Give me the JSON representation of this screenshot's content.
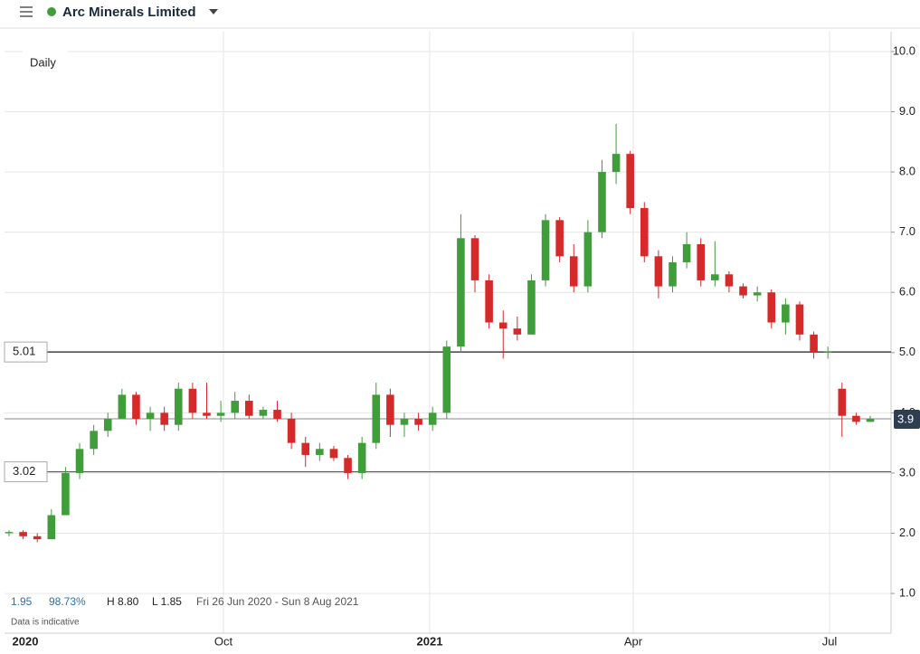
{
  "chart_data": {
    "type": "candlestick",
    "title": "Arc Minerals Limited",
    "interval": "Daily",
    "stats": [
      "1.95",
      "98.73%",
      "H 8.80",
      "L 1.85"
    ],
    "range_label": "Fri 26 Jun 2020 - Sun 8 Aug 2021",
    "note": "Data is indicative",
    "x_labels": [
      "2020",
      "Oct",
      "2021",
      "Apr",
      "Jul"
    ],
    "ylim": [
      0.34,
      10.33
    ],
    "yticks": [
      {
        "value": 1,
        "label": "1.0"
      },
      {
        "value": 2,
        "label": "2.0"
      },
      {
        "value": 3,
        "label": "3.0"
      },
      {
        "value": 4,
        "label": "4.0"
      },
      {
        "value": 5,
        "label": "5.0"
      },
      {
        "value": 6,
        "label": "6.0"
      },
      {
        "value": 7,
        "label": "7.0"
      },
      {
        "value": 8,
        "label": "8.0"
      },
      {
        "value": 9,
        "label": "9.0"
      },
      {
        "value": 10,
        "label": "10.0"
      }
    ],
    "hlines": [
      {
        "value": 5.01,
        "label": "5.01"
      },
      {
        "value": 3.02,
        "label": "3.02"
      }
    ],
    "last_price": {
      "value": 3.9,
      "label": "3.9"
    },
    "up_color": "#3f9e3a",
    "down_color": "#d62a2a",
    "grid": true,
    "open": [
      2.0,
      2.02,
      1.95,
      1.9,
      2.3,
      3.0,
      3.4,
      3.7,
      3.9,
      4.3,
      3.9,
      4.0,
      3.8,
      4.4,
      4.0,
      3.95,
      4.0,
      4.2,
      3.95,
      4.05,
      3.9,
      3.5,
      3.3,
      3.4,
      3.25,
      3.0,
      3.5,
      4.3,
      3.8,
      3.9,
      3.8,
      4.0,
      5.1,
      6.9,
      6.2,
      5.5,
      5.4,
      5.3,
      6.2,
      7.2,
      6.6,
      6.1,
      7.0,
      8.0,
      8.3,
      7.4,
      6.6,
      6.1,
      6.5,
      6.8,
      6.2,
      6.3,
      6.1,
      5.95,
      6.0,
      5.5,
      5.8,
      5.3,
      5.0,
      4.4,
      3.95,
      3.85
    ],
    "high": [
      2.05,
      2.05,
      2.0,
      2.4,
      3.1,
      3.5,
      3.8,
      4.0,
      4.4,
      4.35,
      4.1,
      4.1,
      4.5,
      4.5,
      4.5,
      4.2,
      4.35,
      4.3,
      4.1,
      4.2,
      4.0,
      3.6,
      3.5,
      3.45,
      3.3,
      3.6,
      4.5,
      4.4,
      4.0,
      4.0,
      4.1,
      5.2,
      7.3,
      6.95,
      6.3,
      5.7,
      5.6,
      6.3,
      7.3,
      7.25,
      6.8,
      7.2,
      8.2,
      8.8,
      8.35,
      7.5,
      6.7,
      6.6,
      7.0,
      6.9,
      6.85,
      6.35,
      6.15,
      6.1,
      6.05,
      5.9,
      5.85,
      5.35,
      5.1,
      4.5,
      4.0,
      3.95
    ],
    "low": [
      1.95,
      1.9,
      1.85,
      1.9,
      2.3,
      2.9,
      3.3,
      3.6,
      3.9,
      3.8,
      3.7,
      3.7,
      3.7,
      3.9,
      3.9,
      3.85,
      3.9,
      3.9,
      3.9,
      3.85,
      3.4,
      3.1,
      3.2,
      3.2,
      2.9,
      2.9,
      3.4,
      3.6,
      3.6,
      3.7,
      3.7,
      3.9,
      5.0,
      6.0,
      5.4,
      4.9,
      5.2,
      5.3,
      6.1,
      6.5,
      6.0,
      6.0,
      6.9,
      7.8,
      7.3,
      6.5,
      5.9,
      6.0,
      6.4,
      6.1,
      6.1,
      6.0,
      5.9,
      5.85,
      5.4,
      5.3,
      5.2,
      4.9,
      4.9,
      3.6,
      3.8,
      3.85
    ],
    "close": [
      2.02,
      1.95,
      1.9,
      2.3,
      3.0,
      3.4,
      3.7,
      3.9,
      4.3,
      3.9,
      4.0,
      3.8,
      4.4,
      4.0,
      3.95,
      4.0,
      4.2,
      3.95,
      4.05,
      3.9,
      3.5,
      3.3,
      3.4,
      3.25,
      3.0,
      3.5,
      4.3,
      3.8,
      3.9,
      3.8,
      4.0,
      5.1,
      6.9,
      6.2,
      5.5,
      5.4,
      5.3,
      6.2,
      7.2,
      6.6,
      6.1,
      7.0,
      8.0,
      8.3,
      7.4,
      6.6,
      6.1,
      6.5,
      6.8,
      6.2,
      6.3,
      6.1,
      5.95,
      6.0,
      5.5,
      5.8,
      5.3,
      5.0,
      5.02,
      3.95,
      3.85,
      3.9
    ]
  }
}
